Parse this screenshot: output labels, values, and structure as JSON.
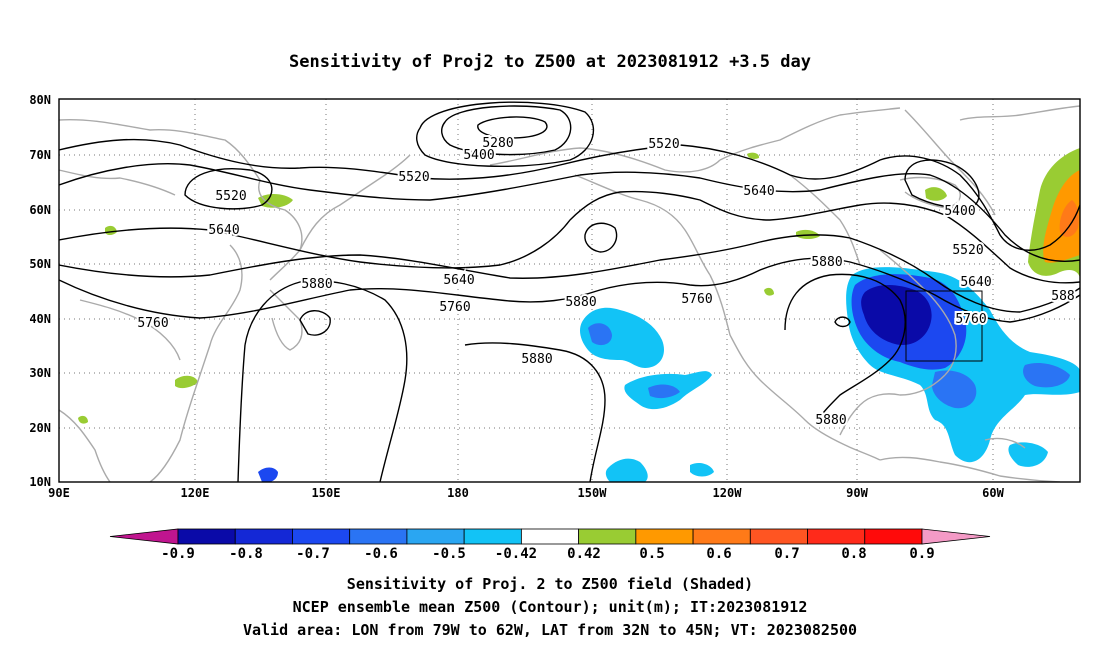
{
  "title": "Sensitivity of Proj2 to Z500 at 2023081912 +3.5 day",
  "lat_labels": [
    "80N",
    "70N",
    "60N",
    "50N",
    "40N",
    "30N",
    "20N",
    "10N"
  ],
  "lon_labels": [
    "90E",
    "120E",
    "150E",
    "180",
    "150W",
    "120W",
    "90W",
    "60W"
  ],
  "contour_labels": [
    "5280",
    "5400",
    "5520",
    "5520",
    "5520",
    "5640",
    "5640",
    "5640",
    "5640",
    "5400",
    "5520",
    "5760",
    "5760",
    "5760",
    "5880",
    "5880",
    "5880",
    "5880",
    "5880",
    "5760",
    "588"
  ],
  "colorbar": {
    "labels": [
      "-0.9",
      "-0.8",
      "-0.7",
      "-0.6",
      "-0.5",
      "-0.42",
      "0.42",
      "0.5",
      "0.6",
      "0.7",
      "0.8",
      "0.9"
    ],
    "colors": [
      "#c0158f",
      "#0a0aa8",
      "#1428d6",
      "#1c48f0",
      "#2a74f4",
      "#2aa6f2",
      "#12c3f6",
      "#ffffff",
      "#99cc33",
      "#ff9900",
      "#ff7a18",
      "#ff5522",
      "#ff2a1a",
      "#ff0a0a",
      "#f49ac6"
    ]
  },
  "footer": {
    "line1": "Sensitivity of Proj. 2 to Z500 field (Shaded)",
    "line2": "NCEP ensemble mean Z500 (Contour); unit(m); IT:2023081912",
    "line3": "Valid area: LON from 79W to 62W, LAT from 32N to 45N; VT: 2023082500"
  },
  "colors": {
    "coastline": "#aaaaaa",
    "contour": "#000000",
    "frame": "#000000"
  }
}
